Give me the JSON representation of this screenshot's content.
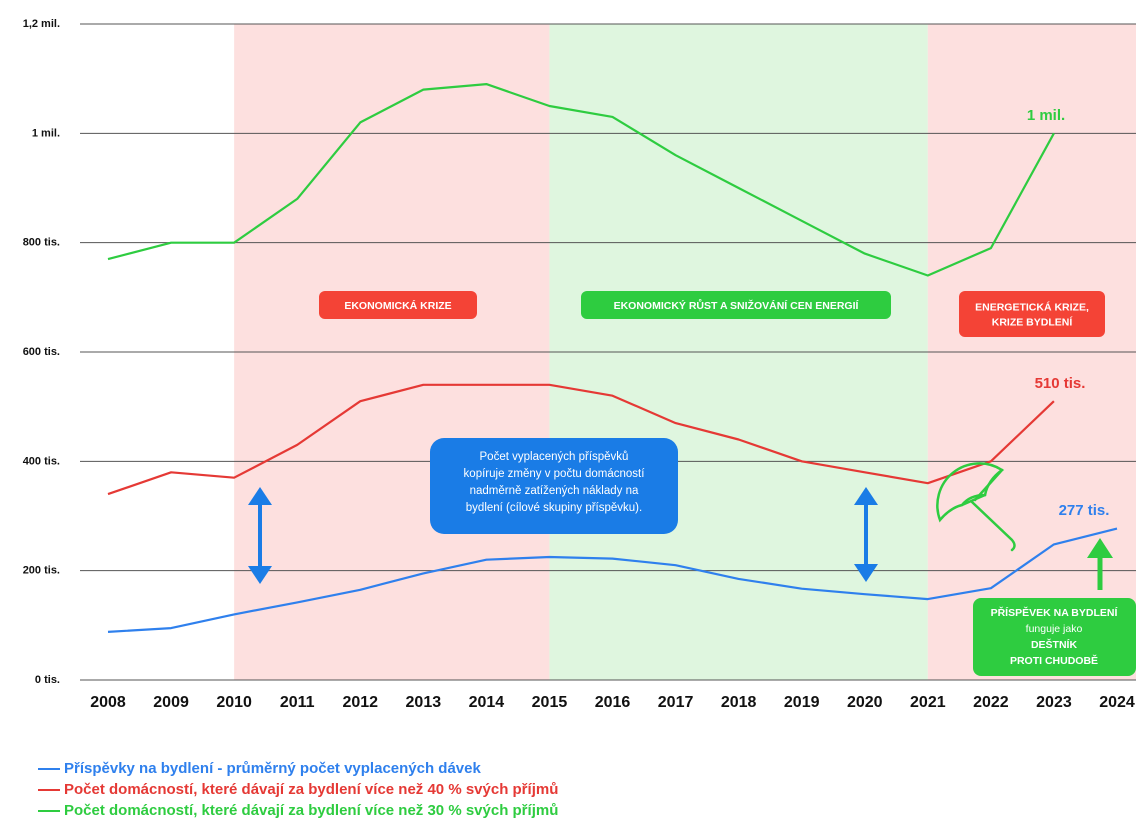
{
  "colors": {
    "blue": "#2f80ed",
    "red": "#e53935",
    "green": "#2ecc40",
    "band_red": "#fde0df",
    "band_green": "#dff6df",
    "box_red": "#f44336",
    "box_green": "#2ecc40",
    "box_blue": "#1a7ce6"
  },
  "chart_data": {
    "type": "line",
    "x": [
      2008,
      2009,
      2010,
      2011,
      2012,
      2013,
      2014,
      2015,
      2016,
      2017,
      2018,
      2019,
      2020,
      2021,
      2022,
      2023,
      2024
    ],
    "ylim": [
      0,
      1200000
    ],
    "yticks": [
      {
        "value": 0,
        "label": "0 tis."
      },
      {
        "value": 200000,
        "label": "200 tis."
      },
      {
        "value": 400000,
        "label": "400 tis."
      },
      {
        "value": 600000,
        "label": "600 tis."
      },
      {
        "value": 800000,
        "label": "800 tis."
      },
      {
        "value": 1000000,
        "label": "1 mil."
      },
      {
        "value": 1200000,
        "label": "1,2 mil."
      }
    ],
    "series": [
      {
        "key": "green",
        "color": "#2ecc40",
        "name": "Počet domácností, které dávají za bydlení více než 30 % svých příjmů",
        "values": [
          770000,
          800000,
          800000,
          880000,
          1020000,
          1080000,
          1090000,
          1050000,
          1030000,
          960000,
          900000,
          840000,
          780000,
          740000,
          790000,
          1000000,
          null
        ],
        "end_label": "1 mil."
      },
      {
        "key": "red",
        "color": "#e53935",
        "name": "Počet domácností, které dávají za bydlení více než 40 % svých příjmů",
        "values": [
          340000,
          380000,
          370000,
          430000,
          510000,
          540000,
          540000,
          540000,
          520000,
          470000,
          440000,
          400000,
          380000,
          360000,
          400000,
          510000,
          null
        ],
        "end_label": "510 tis."
      },
      {
        "key": "blue",
        "color": "#2f80ed",
        "name": "Příspěvky na bydlení - průměrný počet vyplacených dávek",
        "values": [
          88000,
          95000,
          120000,
          142000,
          165000,
          195000,
          220000,
          225000,
          222000,
          210000,
          185000,
          167000,
          157000,
          148000,
          168000,
          248000,
          277000
        ],
        "end_label": "277 tis."
      }
    ],
    "bands": [
      {
        "from": 2010,
        "to": 2015,
        "fill": "#fde0df",
        "label_lines": [
          "EKONOMICKÁ KRIZE"
        ],
        "box_color": "#f44336"
      },
      {
        "from": 2015,
        "to": 2021,
        "fill": "#dff6df",
        "label_lines": [
          "EKONOMICKÝ RŮST A SNIŽOVÁNÍ CEN ENERGIÍ"
        ],
        "box_color": "#2ecc40"
      },
      {
        "from": 2021,
        "to": 2024.55,
        "fill": "#fde0df",
        "label_lines": [
          "ENERGETICKÁ KRIZE,",
          "KRIZE BYDLENÍ"
        ],
        "box_color": "#f44336"
      }
    ],
    "annotations": {
      "blue_box_lines": [
        "Počet vyplacených příspěvků",
        "kopíruje změny v počtu domácností",
        "nadměrně zatížených náklady na",
        "bydlení (cílové skupiny příspěvku)."
      ],
      "green_box_lines": [
        "PŘÍSPĚVEK NA BYDLENÍ",
        "funguje jako",
        "DEŠTNÍK",
        "PROTI CHUDOBĚ"
      ]
    }
  },
  "legend": [
    {
      "label": "Příspěvky na bydlení - průměrný počet vyplacených dávek",
      "color": "#2f80ed"
    },
    {
      "label": "Počet domácností, které dávají za bydlení více než 40 % svých příjmů",
      "color": "#e53935"
    },
    {
      "label": "Počet domácností, které dávají za bydlení více než 30 % svých příjmů",
      "color": "#2ecc40"
    }
  ]
}
